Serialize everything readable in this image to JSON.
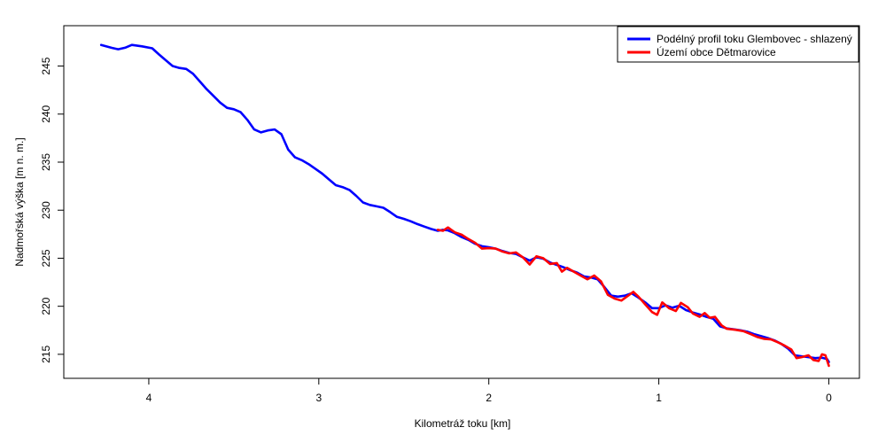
{
  "chart_data": {
    "type": "line",
    "xlabel": "Kilometráž toku [km]",
    "ylabel": "Nadmořská výška [m n. m.]",
    "xlim": [
      4.5,
      -0.18
    ],
    "ylim": [
      212.5,
      249.2
    ],
    "x_ticks": [
      "4",
      "3",
      "2",
      "1",
      "0"
    ],
    "x_tick_values": [
      4,
      3,
      2,
      1,
      0
    ],
    "y_ticks": [
      "215",
      "220",
      "225",
      "230",
      "235",
      "240",
      "245"
    ],
    "y_tick_values": [
      215,
      220,
      225,
      230,
      235,
      240,
      245
    ],
    "grid": false,
    "legend_position": "top-right",
    "series": [
      {
        "name": "Podélný profil toku Glembovec - shlazený",
        "color": "#0000ff",
        "points": [
          [
            4.28,
            247.2
          ],
          [
            4.22,
            246.9
          ],
          [
            4.18,
            246.75
          ],
          [
            4.14,
            246.9
          ],
          [
            4.1,
            247.2
          ],
          [
            4.04,
            247.05
          ],
          [
            3.98,
            246.85
          ],
          [
            3.94,
            246.2
          ],
          [
            3.9,
            245.6
          ],
          [
            3.86,
            245.0
          ],
          [
            3.82,
            244.8
          ],
          [
            3.78,
            244.7
          ],
          [
            3.74,
            244.2
          ],
          [
            3.7,
            243.4
          ],
          [
            3.66,
            242.6
          ],
          [
            3.62,
            241.9
          ],
          [
            3.58,
            241.2
          ],
          [
            3.54,
            240.65
          ],
          [
            3.5,
            240.5
          ],
          [
            3.46,
            240.2
          ],
          [
            3.42,
            239.4
          ],
          [
            3.38,
            238.4
          ],
          [
            3.34,
            238.1
          ],
          [
            3.3,
            238.3
          ],
          [
            3.26,
            238.4
          ],
          [
            3.22,
            237.9
          ],
          [
            3.18,
            236.3
          ],
          [
            3.14,
            235.5
          ],
          [
            3.1,
            235.2
          ],
          [
            3.06,
            234.8
          ],
          [
            3.02,
            234.3
          ],
          [
            2.98,
            233.8
          ],
          [
            2.94,
            233.2
          ],
          [
            2.9,
            232.6
          ],
          [
            2.86,
            232.4
          ],
          [
            2.82,
            232.1
          ],
          [
            2.78,
            231.5
          ],
          [
            2.74,
            230.8
          ],
          [
            2.7,
            230.55
          ],
          [
            2.66,
            230.4
          ],
          [
            2.62,
            230.25
          ],
          [
            2.58,
            229.8
          ],
          [
            2.54,
            229.3
          ],
          [
            2.5,
            229.1
          ],
          [
            2.46,
            228.85
          ],
          [
            2.42,
            228.55
          ],
          [
            2.38,
            228.3
          ],
          [
            2.34,
            228.05
          ],
          [
            2.3,
            227.85
          ],
          [
            2.27,
            227.95
          ],
          [
            2.24,
            227.9
          ],
          [
            2.2,
            227.6
          ],
          [
            2.16,
            227.2
          ],
          [
            2.12,
            226.9
          ],
          [
            2.08,
            226.5
          ],
          [
            2.04,
            226.25
          ],
          [
            2.0,
            226.15
          ],
          [
            1.96,
            226.0
          ],
          [
            1.92,
            225.75
          ],
          [
            1.88,
            225.55
          ],
          [
            1.84,
            225.45
          ],
          [
            1.8,
            225.1
          ],
          [
            1.76,
            224.75
          ],
          [
            1.72,
            225.1
          ],
          [
            1.68,
            224.95
          ],
          [
            1.64,
            224.55
          ],
          [
            1.6,
            224.3
          ],
          [
            1.56,
            224.05
          ],
          [
            1.52,
            223.75
          ],
          [
            1.48,
            223.5
          ],
          [
            1.44,
            223.1
          ],
          [
            1.4,
            223.0
          ],
          [
            1.36,
            222.8
          ],
          [
            1.32,
            222.0
          ],
          [
            1.28,
            221.1
          ],
          [
            1.24,
            221.0
          ],
          [
            1.2,
            221.1
          ],
          [
            1.16,
            221.35
          ],
          [
            1.12,
            220.9
          ],
          [
            1.08,
            220.4
          ],
          [
            1.04,
            219.8
          ],
          [
            1.0,
            219.8
          ],
          [
            0.96,
            220.1
          ],
          [
            0.92,
            219.85
          ],
          [
            0.88,
            220.05
          ],
          [
            0.84,
            219.6
          ],
          [
            0.8,
            219.35
          ],
          [
            0.76,
            219.15
          ],
          [
            0.72,
            218.9
          ],
          [
            0.68,
            218.7
          ],
          [
            0.64,
            217.9
          ],
          [
            0.6,
            217.7
          ],
          [
            0.56,
            217.6
          ],
          [
            0.52,
            217.5
          ],
          [
            0.48,
            217.35
          ],
          [
            0.44,
            217.1
          ],
          [
            0.4,
            216.9
          ],
          [
            0.36,
            216.7
          ],
          [
            0.32,
            216.45
          ],
          [
            0.28,
            216.1
          ],
          [
            0.24,
            215.6
          ],
          [
            0.2,
            214.9
          ],
          [
            0.16,
            214.8
          ],
          [
            0.12,
            214.7
          ],
          [
            0.08,
            214.6
          ],
          [
            0.04,
            214.65
          ],
          [
            0.01,
            214.5
          ],
          [
            0.0,
            214.2
          ]
        ]
      },
      {
        "name": "Území obce Dětmarovice",
        "color": "#ff0000",
        "points": [
          [
            2.3,
            227.95
          ],
          [
            2.27,
            227.85
          ],
          [
            2.24,
            228.2
          ],
          [
            2.2,
            227.7
          ],
          [
            2.16,
            227.45
          ],
          [
            2.12,
            227.0
          ],
          [
            2.08,
            226.6
          ],
          [
            2.04,
            226.0
          ],
          [
            2.0,
            226.05
          ],
          [
            1.96,
            226.0
          ],
          [
            1.92,
            225.7
          ],
          [
            1.88,
            225.5
          ],
          [
            1.84,
            225.6
          ],
          [
            1.8,
            225.1
          ],
          [
            1.76,
            224.35
          ],
          [
            1.72,
            225.2
          ],
          [
            1.68,
            225.0
          ],
          [
            1.64,
            224.4
          ],
          [
            1.6,
            224.5
          ],
          [
            1.57,
            223.6
          ],
          [
            1.54,
            224.0
          ],
          [
            1.5,
            223.6
          ],
          [
            1.46,
            223.2
          ],
          [
            1.42,
            222.8
          ],
          [
            1.38,
            223.2
          ],
          [
            1.34,
            222.6
          ],
          [
            1.3,
            221.2
          ],
          [
            1.26,
            220.8
          ],
          [
            1.22,
            220.6
          ],
          [
            1.18,
            221.1
          ],
          [
            1.15,
            221.5
          ],
          [
            1.12,
            221.0
          ],
          [
            1.08,
            220.2
          ],
          [
            1.04,
            219.4
          ],
          [
            1.01,
            219.1
          ],
          [
            0.98,
            220.4
          ],
          [
            0.94,
            219.8
          ],
          [
            0.9,
            219.5
          ],
          [
            0.87,
            220.35
          ],
          [
            0.83,
            219.9
          ],
          [
            0.8,
            219.25
          ],
          [
            0.76,
            218.9
          ],
          [
            0.73,
            219.3
          ],
          [
            0.7,
            218.8
          ],
          [
            0.67,
            218.9
          ],
          [
            0.63,
            218.0
          ],
          [
            0.6,
            217.65
          ],
          [
            0.55,
            217.55
          ],
          [
            0.5,
            217.4
          ],
          [
            0.46,
            217.1
          ],
          [
            0.42,
            216.8
          ],
          [
            0.38,
            216.6
          ],
          [
            0.34,
            216.55
          ],
          [
            0.3,
            216.25
          ],
          [
            0.26,
            215.9
          ],
          [
            0.22,
            215.5
          ],
          [
            0.19,
            214.6
          ],
          [
            0.16,
            214.7
          ],
          [
            0.12,
            214.9
          ],
          [
            0.09,
            214.4
          ],
          [
            0.06,
            214.3
          ],
          [
            0.04,
            215.0
          ],
          [
            0.02,
            214.9
          ],
          [
            0.0,
            213.8
          ]
        ]
      }
    ]
  }
}
